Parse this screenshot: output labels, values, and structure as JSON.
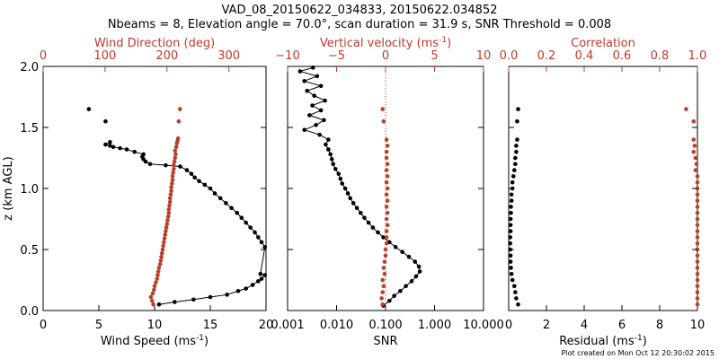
{
  "title_line1": "VAD_08_20150622_034833, 20150622.034852",
  "title_line2": "Nbeams = 8, Elevation angle = 70.0°, scan duration = 31.9 s, SNR Threshold = 0.008",
  "footer": "Plot created on Mon Oct 12 20:30:02 2015",
  "y_axis": {
    "label": "z (km AGL)",
    "range": [
      0,
      2.0
    ],
    "ticks": [
      "0.0",
      "0.5",
      "1.0",
      "1.5",
      "2.0"
    ]
  },
  "colors": {
    "black_series": "#000000",
    "red_series": "#b5432a",
    "red_axis": "#c0392b"
  },
  "panels": [
    {
      "bottom_label": "Wind Speed (ms",
      "bottom_sup": "-1",
      "bottom_tail": ")",
      "bottom_ticks": [
        "0",
        "5",
        "10",
        "15",
        "20"
      ],
      "top_label": "Wind Direction (deg)",
      "top_sup": "",
      "top_tail": "",
      "top_ticks": [
        "0",
        "100",
        "200",
        "300"
      ]
    },
    {
      "bottom_label": "SNR",
      "bottom_sup": "",
      "bottom_tail": "",
      "bottom_ticks": [
        "0.001",
        "0.010",
        "0.100",
        "1.000",
        "10.000"
      ],
      "top_label": "Vertical velocity (ms",
      "top_sup": "-1",
      "top_tail": ")",
      "top_ticks": [
        "−10",
        "−5",
        "0",
        "5",
        "10"
      ]
    },
    {
      "bottom_label": "Residual (ms",
      "bottom_sup": "-1",
      "bottom_tail": ")",
      "bottom_ticks": [
        "0",
        "2",
        "4",
        "6",
        "8",
        "10"
      ],
      "top_label": "Correlation",
      "top_sup": "",
      "top_tail": "",
      "top_ticks": [
        "0.0",
        "0.2",
        "0.4",
        "0.6",
        "0.8",
        "1.0"
      ]
    }
  ],
  "chart_data": [
    {
      "type": "line",
      "panel": 0,
      "ylabel": "z (km AGL)",
      "ylim": [
        0,
        2.0
      ],
      "series": [
        {
          "axis": "bottom",
          "xlim": [
            0,
            20
          ],
          "color": "#000000",
          "connected": true,
          "points": [
            [
              10.4,
              0.05
            ],
            [
              11.8,
              0.07
            ],
            [
              13.5,
              0.09
            ],
            [
              15.0,
              0.11
            ],
            [
              16.5,
              0.13
            ],
            [
              17.5,
              0.16
            ],
            [
              18.2,
              0.18
            ],
            [
              18.8,
              0.21
            ],
            [
              19.3,
              0.24
            ],
            [
              19.6,
              0.26
            ],
            [
              19.9,
              0.29
            ],
            [
              19.5,
              0.3
            ],
            [
              19.9,
              0.52
            ],
            [
              19.6,
              0.56
            ],
            [
              19.3,
              0.6
            ],
            [
              19.0,
              0.64
            ],
            [
              18.6,
              0.68
            ],
            [
              18.2,
              0.72
            ],
            [
              17.8,
              0.76
            ],
            [
              17.4,
              0.8
            ],
            [
              16.9,
              0.84
            ],
            [
              16.4,
              0.88
            ],
            [
              15.9,
              0.92
            ],
            [
              15.4,
              0.96
            ],
            [
              15.0,
              1.0
            ],
            [
              14.5,
              1.03
            ],
            [
              14.0,
              1.06
            ],
            [
              13.6,
              1.09
            ],
            [
              13.3,
              1.12
            ],
            [
              12.9,
              1.15
            ],
            [
              12.3,
              1.18
            ],
            [
              11.0,
              1.19
            ],
            [
              9.6,
              1.2
            ],
            [
              9.2,
              1.22
            ],
            [
              9.0,
              1.24
            ],
            [
              8.9,
              1.26
            ],
            [
              9.0,
              1.28
            ],
            [
              8.2,
              1.3
            ],
            [
              7.5,
              1.32
            ],
            [
              6.9,
              1.33
            ],
            [
              6.3,
              1.34
            ],
            [
              6.0,
              1.35
            ],
            [
              5.6,
              1.36
            ],
            [
              6.0,
              1.38
            ]
          ],
          "isolated": [
            [
              5.6,
              1.55
            ],
            [
              4.1,
              1.65
            ]
          ]
        },
        {
          "axis": "top",
          "xlim": [
            0,
            360
          ],
          "color": "#b5432a",
          "connected": false,
          "points": [
            [
              178,
              0.05
            ],
            [
              176,
              0.08
            ],
            [
              174,
              0.11
            ],
            [
              177,
              0.14
            ],
            [
              179,
              0.17
            ],
            [
              180,
              0.2
            ],
            [
              182,
              0.23
            ],
            [
              184,
              0.26
            ],
            [
              185,
              0.29
            ],
            [
              186,
              0.32
            ],
            [
              187,
              0.35
            ],
            [
              189,
              0.38
            ],
            [
              190,
              0.41
            ],
            [
              191,
              0.44
            ],
            [
              192,
              0.47
            ],
            [
              193,
              0.5
            ],
            [
              194,
              0.53
            ],
            [
              195,
              0.56
            ],
            [
              196,
              0.59
            ],
            [
              197,
              0.62
            ],
            [
              198,
              0.65
            ],
            [
              199,
              0.68
            ],
            [
              200,
              0.71
            ],
            [
              201,
              0.74
            ],
            [
              202,
              0.77
            ],
            [
              203,
              0.8
            ],
            [
              203,
              0.83
            ],
            [
              204,
              0.86
            ],
            [
              205,
              0.89
            ],
            [
              205,
              0.92
            ],
            [
              206,
              0.95
            ],
            [
              207,
              0.98
            ],
            [
              207,
              1.01
            ],
            [
              208,
              1.04
            ],
            [
              209,
              1.07
            ],
            [
              209,
              1.1
            ],
            [
              210,
              1.13
            ],
            [
              211,
              1.16
            ],
            [
              211,
              1.19
            ],
            [
              212,
              1.22
            ],
            [
              213,
              1.25
            ],
            [
              214,
              1.28
            ],
            [
              213,
              1.31
            ],
            [
              215,
              1.34
            ],
            [
              216,
              1.37
            ],
            [
              217,
              1.39
            ],
            [
              218,
              1.41
            ],
            [
              219,
              1.55
            ],
            [
              221,
              1.65
            ]
          ]
        }
      ]
    },
    {
      "type": "line",
      "panel": 1,
      "ylim": [
        0,
        2.0
      ],
      "series": [
        {
          "axis": "bottom",
          "xlim": [
            0.001,
            10
          ],
          "scale": "log",
          "color": "#000000",
          "connected": true,
          "points": [
            [
              0.09,
              0.04
            ],
            [
              0.12,
              0.08
            ],
            [
              0.15,
              0.12
            ],
            [
              0.2,
              0.16
            ],
            [
              0.26,
              0.2
            ],
            [
              0.34,
              0.24
            ],
            [
              0.42,
              0.28
            ],
            [
              0.5,
              0.32
            ],
            [
              0.48,
              0.36
            ],
            [
              0.4,
              0.4
            ],
            [
              0.3,
              0.44
            ],
            [
              0.22,
              0.48
            ],
            [
              0.16,
              0.52
            ],
            [
              0.12,
              0.56
            ],
            [
              0.09,
              0.6
            ],
            [
              0.07,
              0.64
            ],
            [
              0.055,
              0.68
            ],
            [
              0.045,
              0.72
            ],
            [
              0.037,
              0.76
            ],
            [
              0.031,
              0.8
            ],
            [
              0.026,
              0.84
            ],
            [
              0.022,
              0.88
            ],
            [
              0.019,
              0.92
            ],
            [
              0.017,
              0.96
            ],
            [
              0.015,
              1.0
            ],
            [
              0.013,
              1.04
            ],
            [
              0.012,
              1.08
            ],
            [
              0.011,
              1.12
            ],
            [
              0.0095,
              1.16
            ],
            [
              0.0085,
              1.2
            ],
            [
              0.008,
              1.24
            ],
            [
              0.0075,
              1.28
            ],
            [
              0.0068,
              1.32
            ],
            [
              0.006,
              1.36
            ],
            [
              0.0068,
              1.4
            ],
            [
              0.0045,
              1.44
            ],
            [
              0.0022,
              1.48
            ],
            [
              0.0038,
              1.52
            ],
            [
              0.0055,
              1.56
            ],
            [
              0.0028,
              1.6
            ],
            [
              0.0048,
              1.64
            ],
            [
              0.0032,
              1.68
            ],
            [
              0.0058,
              1.72
            ],
            [
              0.0035,
              1.76
            ],
            [
              0.0025,
              1.8
            ],
            [
              0.0048,
              1.84
            ],
            [
              0.0022,
              1.88
            ],
            [
              0.004,
              1.92
            ],
            [
              0.0018,
              1.96
            ],
            [
              0.0033,
              1.99
            ]
          ]
        },
        {
          "axis": "top",
          "xlim": [
            -10,
            10
          ],
          "color": "#b5432a",
          "connected": false,
          "reference_line": 0,
          "points": [
            [
              -0.3,
              0.05
            ],
            [
              -0.4,
              0.1
            ],
            [
              -0.3,
              0.15
            ],
            [
              -0.2,
              0.2
            ],
            [
              -0.3,
              0.25
            ],
            [
              -0.1,
              0.3
            ],
            [
              -0.2,
              0.35
            ],
            [
              -0.1,
              0.4
            ],
            [
              0.0,
              0.45
            ],
            [
              0.0,
              0.5
            ],
            [
              0.1,
              0.55
            ],
            [
              0.1,
              0.6
            ],
            [
              0.1,
              0.65
            ],
            [
              0.2,
              0.7
            ],
            [
              0.1,
              0.75
            ],
            [
              0.2,
              0.8
            ],
            [
              0.1,
              0.85
            ],
            [
              0.2,
              0.9
            ],
            [
              0.1,
              0.95
            ],
            [
              0.2,
              1.0
            ],
            [
              0.1,
              1.05
            ],
            [
              0.2,
              1.1
            ],
            [
              0.1,
              1.15
            ],
            [
              0.2,
              1.2
            ],
            [
              0.1,
              1.25
            ],
            [
              0.1,
              1.3
            ],
            [
              0.2,
              1.35
            ],
            [
              0.1,
              1.4
            ],
            [
              -0.2,
              1.55
            ],
            [
              -0.3,
              1.65
            ]
          ]
        }
      ]
    },
    {
      "type": "scatter",
      "panel": 2,
      "ylim": [
        0,
        2.0
      ],
      "series": [
        {
          "axis": "bottom",
          "xlim": [
            0,
            10
          ],
          "color": "#000000",
          "connected": false,
          "points": [
            [
              0.5,
              0.05
            ],
            [
              0.4,
              0.1
            ],
            [
              0.35,
              0.15
            ],
            [
              0.3,
              0.2
            ],
            [
              0.2,
              0.25
            ],
            [
              0.15,
              0.3
            ],
            [
              0.12,
              0.35
            ],
            [
              0.1,
              0.4
            ],
            [
              0.1,
              0.45
            ],
            [
              0.08,
              0.5
            ],
            [
              0.08,
              0.55
            ],
            [
              0.08,
              0.6
            ],
            [
              0.1,
              0.65
            ],
            [
              0.1,
              0.7
            ],
            [
              0.1,
              0.75
            ],
            [
              0.12,
              0.8
            ],
            [
              0.12,
              0.85
            ],
            [
              0.15,
              0.9
            ],
            [
              0.15,
              0.95
            ],
            [
              0.2,
              1.0
            ],
            [
              0.2,
              1.05
            ],
            [
              0.25,
              1.1
            ],
            [
              0.3,
              1.15
            ],
            [
              0.35,
              1.2
            ],
            [
              0.35,
              1.25
            ],
            [
              0.4,
              1.3
            ],
            [
              0.4,
              1.35
            ],
            [
              0.45,
              1.4
            ],
            [
              0.45,
              1.55
            ],
            [
              0.5,
              1.65
            ]
          ]
        },
        {
          "axis": "top",
          "xlim": [
            0,
            1
          ],
          "color": "#b5432a",
          "connected": false,
          "points": [
            [
              1.0,
              0.05
            ],
            [
              1.0,
              0.1
            ],
            [
              1.0,
              0.15
            ],
            [
              1.0,
              0.2
            ],
            [
              1.0,
              0.25
            ],
            [
              1.0,
              0.3
            ],
            [
              1.0,
              0.35
            ],
            [
              1.0,
              0.4
            ],
            [
              1.0,
              0.45
            ],
            [
              1.0,
              0.5
            ],
            [
              1.0,
              0.55
            ],
            [
              1.0,
              0.6
            ],
            [
              1.0,
              0.65
            ],
            [
              1.0,
              0.7
            ],
            [
              1.0,
              0.75
            ],
            [
              1.0,
              0.8
            ],
            [
              1.0,
              0.85
            ],
            [
              1.0,
              0.9
            ],
            [
              1.0,
              0.95
            ],
            [
              1.0,
              1.0
            ],
            [
              1.0,
              1.05
            ],
            [
              1.0,
              1.1
            ],
            [
              0.99,
              1.15
            ],
            [
              0.995,
              1.2
            ],
            [
              0.99,
              1.25
            ],
            [
              0.98,
              1.3
            ],
            [
              0.985,
              1.35
            ],
            [
              0.98,
              1.4
            ],
            [
              0.98,
              1.55
            ],
            [
              0.94,
              1.65
            ]
          ]
        }
      ]
    }
  ]
}
